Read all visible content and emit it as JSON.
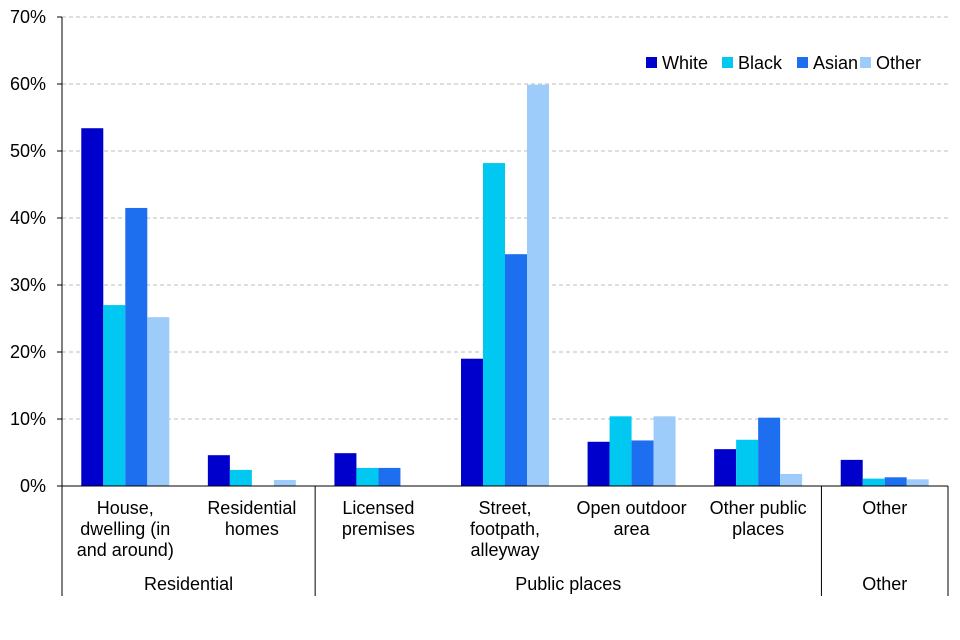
{
  "chart_data": {
    "type": "bar",
    "title": "",
    "xlabel": "",
    "ylabel": "",
    "ylim": [
      0,
      70
    ],
    "yticks": [
      "0%",
      "10%",
      "20%",
      "30%",
      "40%",
      "50%",
      "60%",
      "70%"
    ],
    "grid": true,
    "legend_position": "top-right",
    "categories": [
      [
        "House,",
        "dwelling (in",
        "and around)"
      ],
      [
        "Residential",
        "homes"
      ],
      [
        "Licensed",
        "premises"
      ],
      [
        "Street,",
        "footpath,",
        "alleyway"
      ],
      [
        "Open outdoor",
        "area"
      ],
      [
        "Other public",
        "places"
      ],
      [
        "Other"
      ]
    ],
    "groups": [
      {
        "label": "Residential",
        "span": [
          0,
          1
        ]
      },
      {
        "label": "Public places",
        "span": [
          2,
          5
        ]
      },
      {
        "label": "Other",
        "span": [
          6,
          6
        ]
      }
    ],
    "series": [
      {
        "name": "White",
        "color": "#0000CC",
        "values": [
          53.4,
          4.6,
          4.9,
          19.0,
          6.6,
          5.5,
          3.9
        ]
      },
      {
        "name": "Black",
        "color": "#00C8F0",
        "values": [
          27.0,
          2.4,
          2.7,
          48.2,
          10.4,
          6.9,
          1.1
        ]
      },
      {
        "name": "Asian",
        "color": "#1E6EF0",
        "values": [
          41.5,
          0,
          2.7,
          34.6,
          6.8,
          10.2,
          1.3
        ]
      },
      {
        "name": "Other",
        "color": "#9ECCFA",
        "values": [
          25.2,
          0.9,
          0,
          59.9,
          10.4,
          1.8,
          1.0
        ]
      }
    ]
  }
}
